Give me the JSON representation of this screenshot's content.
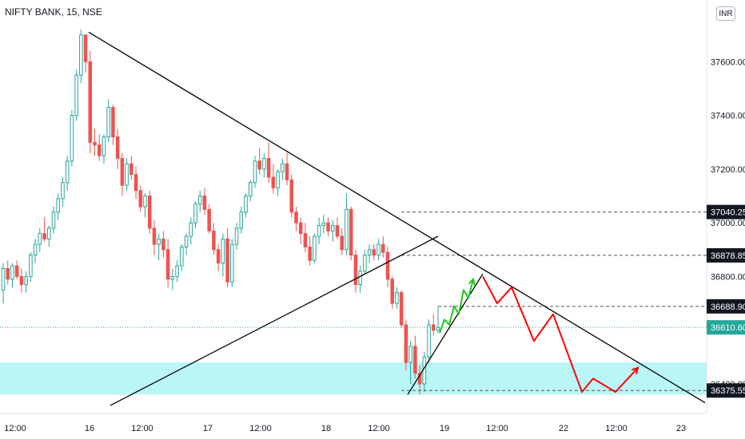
{
  "symbol_title": "NIFTY BANK, 15, NSE",
  "currency_button": "INR",
  "colors": {
    "up": "#26a69a",
    "down": "#ef5350",
    "zone": "#b2f5f5",
    "price_badge": "#26a69a",
    "level_badge": "#131722",
    "projection_up": "#1ec81e",
    "projection_down": "#ff0000",
    "trendline": "#000000"
  },
  "chart_data": {
    "type": "candlestick",
    "title": "NIFTY BANK, 15, NSE",
    "x_ticks": [
      "12:00",
      "16",
      "12:00",
      "17",
      "12:00",
      "18",
      "12:00",
      "19",
      "12:00",
      "22",
      "12:00",
      "23"
    ],
    "y_ticks": [
      37600,
      37400,
      37200,
      37000,
      36800,
      36600,
      36400
    ],
    "y_tick_labels": [
      "37600.00",
      "37400.00",
      "37200.00",
      "37000.00",
      "36800.00",
      "36600.00",
      "36400.00"
    ],
    "ylim": [
      36290,
      37830
    ],
    "grid": false,
    "current_price": 36610.6,
    "current_price_label": "36610.60",
    "levels": [
      {
        "value": 37040.25,
        "label": "37040.25"
      },
      {
        "value": 36878.85,
        "label": "36878.85"
      },
      {
        "value": 36688.9,
        "label": "36688.90"
      },
      {
        "value": 36375.55,
        "label": "36375.55"
      }
    ],
    "support_zone": [
      36360,
      36480
    ],
    "candles": [
      [
        36750,
        36850,
        36700,
        36830
      ],
      [
        36830,
        36860,
        36770,
        36790
      ],
      [
        36790,
        36850,
        36760,
        36840
      ],
      [
        36840,
        36860,
        36790,
        36800
      ],
      [
        36800,
        36830,
        36740,
        36770
      ],
      [
        36770,
        36820,
        36740,
        36800
      ],
      [
        36800,
        36890,
        36780,
        36880
      ],
      [
        36880,
        36940,
        36850,
        36920
      ],
      [
        36920,
        36980,
        36890,
        36960
      ],
      [
        36960,
        37020,
        36930,
        36940
      ],
      [
        36940,
        36990,
        36910,
        36980
      ],
      [
        36980,
        37060,
        36960,
        37040
      ],
      [
        37040,
        37110,
        37010,
        37090
      ],
      [
        37090,
        37170,
        37060,
        37150
      ],
      [
        37150,
        37250,
        37120,
        37230
      ],
      [
        37230,
        37420,
        37210,
        37400
      ],
      [
        37400,
        37570,
        37380,
        37550
      ],
      [
        37550,
        37720,
        37520,
        37700
      ],
      [
        37700,
        37690,
        37560,
        37600
      ],
      [
        37600,
        37640,
        37260,
        37300
      ],
      [
        37300,
        37350,
        37250,
        37290
      ],
      [
        37290,
        37330,
        37230,
        37250
      ],
      [
        37250,
        37330,
        37220,
        37320
      ],
      [
        37320,
        37460,
        37300,
        37430
      ],
      [
        37430,
        37440,
        37290,
        37320
      ],
      [
        37320,
        37350,
        37200,
        37240
      ],
      [
        37240,
        37260,
        37100,
        37140
      ],
      [
        37140,
        37240,
        37120,
        37220
      ],
      [
        37220,
        37250,
        37160,
        37180
      ],
      [
        37180,
        37210,
        37090,
        37120
      ],
      [
        37120,
        37140,
        37040,
        37060
      ],
      [
        37060,
        37110,
        37020,
        37100
      ],
      [
        37100,
        37120,
        36960,
        36980
      ],
      [
        36980,
        37010,
        36880,
        36920
      ],
      [
        36920,
        36960,
        36860,
        36940
      ],
      [
        36940,
        36970,
        36870,
        36900
      ],
      [
        36900,
        36940,
        36760,
        36790
      ],
      [
        36790,
        36830,
        36750,
        36800
      ],
      [
        36800,
        36860,
        36780,
        36840
      ],
      [
        36840,
        36920,
        36820,
        36910
      ],
      [
        36910,
        36960,
        36880,
        36950
      ],
      [
        36950,
        37020,
        36920,
        37000
      ],
      [
        37000,
        37080,
        36980,
        37070
      ],
      [
        37070,
        37120,
        37040,
        37100
      ],
      [
        37100,
        37130,
        37030,
        37050
      ],
      [
        37050,
        37070,
        36960,
        36970
      ],
      [
        36970,
        37000,
        36880,
        36900
      ],
      [
        36900,
        36920,
        36820,
        36850
      ],
      [
        36850,
        36960,
        36800,
        36940
      ],
      [
        36940,
        36980,
        36760,
        36780
      ],
      [
        36780,
        36940,
        36760,
        36920
      ],
      [
        36920,
        37000,
        36900,
        36980
      ],
      [
        36980,
        37060,
        36960,
        37040
      ],
      [
        37040,
        37110,
        37020,
        37100
      ],
      [
        37100,
        37160,
        37080,
        37150
      ],
      [
        37150,
        37250,
        37130,
        37230
      ],
      [
        37230,
        37280,
        37180,
        37200
      ],
      [
        37200,
        37260,
        37170,
        37240
      ],
      [
        37240,
        37300,
        37150,
        37170
      ],
      [
        37170,
        37220,
        37110,
        37130
      ],
      [
        37130,
        37200,
        37100,
        37190
      ],
      [
        37190,
        37240,
        37160,
        37220
      ],
      [
        37220,
        37260,
        37140,
        37160
      ],
      [
        37160,
        37180,
        37020,
        37040
      ],
      [
        37040,
        37060,
        36970,
        37000
      ],
      [
        37000,
        37020,
        36920,
        36960
      ],
      [
        36960,
        37000,
        36890,
        36910
      ],
      [
        36910,
        36950,
        36840,
        36860
      ],
      [
        36860,
        36960,
        36850,
        36950
      ],
      [
        36950,
        37020,
        36920,
        36990
      ],
      [
        36990,
        37030,
        36960,
        37000
      ],
      [
        37000,
        37020,
        36950,
        36970
      ],
      [
        36970,
        37010,
        36930,
        36990
      ],
      [
        36990,
        37020,
        36940,
        36950
      ],
      [
        36950,
        36980,
        36880,
        36900
      ],
      [
        36900,
        37110,
        36880,
        37050
      ],
      [
        37050,
        37060,
        36860,
        36880
      ],
      [
        36880,
        36900,
        36740,
        36770
      ],
      [
        36770,
        36840,
        36740,
        36820
      ],
      [
        36820,
        36900,
        36810,
        36880
      ],
      [
        36880,
        36920,
        36850,
        36900
      ],
      [
        36900,
        36920,
        36860,
        36880
      ],
      [
        36880,
        36940,
        36860,
        36920
      ],
      [
        36920,
        36950,
        36870,
        36890
      ],
      [
        36890,
        36910,
        36760,
        36790
      ],
      [
        36790,
        36800,
        36680,
        36700
      ],
      [
        36700,
        36760,
        36680,
        36740
      ],
      [
        36740,
        36750,
        36610,
        36620
      ],
      [
        36620,
        36640,
        36450,
        36480
      ],
      [
        36480,
        36560,
        36400,
        36540
      ],
      [
        36540,
        36580,
        36420,
        36440
      ],
      [
        36440,
        36470,
        36360,
        36400
      ],
      [
        36400,
        36520,
        36370,
        36500
      ],
      [
        36500,
        36640,
        36480,
        36620
      ],
      [
        36620,
        36660,
        36580,
        36600
      ],
      [
        36600,
        36690,
        36590,
        36610
      ]
    ],
    "projection_up": [
      [
        550,
        36590
      ],
      [
        556,
        36640
      ],
      [
        562,
        36620
      ],
      [
        568,
        36690
      ],
      [
        574,
        36660
      ],
      [
        580,
        36750
      ],
      [
        586,
        36720
      ],
      [
        592,
        36790
      ]
    ],
    "projection_down": [
      [
        604,
        36800
      ],
      [
        622,
        36700
      ],
      [
        640,
        36760
      ],
      [
        668,
        36560
      ],
      [
        692,
        36660
      ],
      [
        728,
        36370
      ],
      [
        742,
        36420
      ],
      [
        770,
        36370
      ],
      [
        798,
        36460
      ]
    ],
    "trendlines": [
      {
        "from": [
          111,
          37710
        ],
        "to": [
          882,
          36330
        ]
      },
      {
        "from": [
          138,
          36320
        ],
        "to": [
          548,
          36950
        ]
      },
      {
        "from": [
          510,
          36360
        ],
        "to": [
          604,
          36810
        ]
      }
    ]
  }
}
